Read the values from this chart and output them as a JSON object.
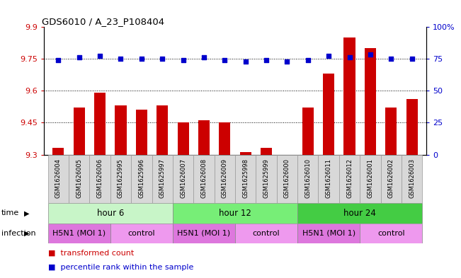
{
  "title": "GDS6010 / A_23_P108404",
  "samples": [
    "GSM1626004",
    "GSM1626005",
    "GSM1626006",
    "GSM1625995",
    "GSM1625996",
    "GSM1625997",
    "GSM1626007",
    "GSM1626008",
    "GSM1626009",
    "GSM1625998",
    "GSM1625999",
    "GSM1626000",
    "GSM1626010",
    "GSM1626011",
    "GSM1626012",
    "GSM1626001",
    "GSM1626002",
    "GSM1626003"
  ],
  "bar_values": [
    9.33,
    9.52,
    9.59,
    9.53,
    9.51,
    9.53,
    9.45,
    9.46,
    9.45,
    9.31,
    9.33,
    9.3,
    9.52,
    9.68,
    9.85,
    9.8,
    9.52,
    9.56
  ],
  "dot_values": [
    74,
    76,
    77,
    75,
    75,
    75,
    74,
    76,
    74,
    73,
    74,
    73,
    74,
    77,
    76,
    78,
    75,
    75
  ],
  "bar_color": "#cc0000",
  "dot_color": "#0000cc",
  "ylim_left": [
    9.3,
    9.9
  ],
  "ylim_right": [
    0,
    100
  ],
  "yticks_left": [
    9.3,
    9.45,
    9.6,
    9.75,
    9.9
  ],
  "yticks_right": [
    0,
    25,
    50,
    75,
    100
  ],
  "ytick_labels_right": [
    "0",
    "25",
    "50",
    "75",
    "100%"
  ],
  "grid_values": [
    9.45,
    9.6,
    9.75
  ],
  "time_groups": [
    {
      "label": "hour 6",
      "start": 0,
      "end": 6,
      "color": "#c8f5c8"
    },
    {
      "label": "hour 12",
      "start": 6,
      "end": 12,
      "color": "#77ee77"
    },
    {
      "label": "hour 24",
      "start": 12,
      "end": 18,
      "color": "#44cc44"
    }
  ],
  "infection_groups": [
    {
      "label": "H5N1 (MOI 1)",
      "start": 0,
      "end": 3,
      "color": "#dd77dd"
    },
    {
      "label": "control",
      "start": 3,
      "end": 6,
      "color": "#ee99ee"
    },
    {
      "label": "H5N1 (MOI 1)",
      "start": 6,
      "end": 9,
      "color": "#dd77dd"
    },
    {
      "label": "control",
      "start": 9,
      "end": 12,
      "color": "#ee99ee"
    },
    {
      "label": "H5N1 (MOI 1)",
      "start": 12,
      "end": 15,
      "color": "#dd77dd"
    },
    {
      "label": "control",
      "start": 15,
      "end": 18,
      "color": "#ee99ee"
    }
  ],
  "legend": [
    {
      "label": "transformed count",
      "color": "#cc0000"
    },
    {
      "label": "percentile rank within the sample",
      "color": "#0000cc"
    }
  ],
  "sample_cell_color": "#d8d8d8",
  "sample_cell_edge": "#999999"
}
